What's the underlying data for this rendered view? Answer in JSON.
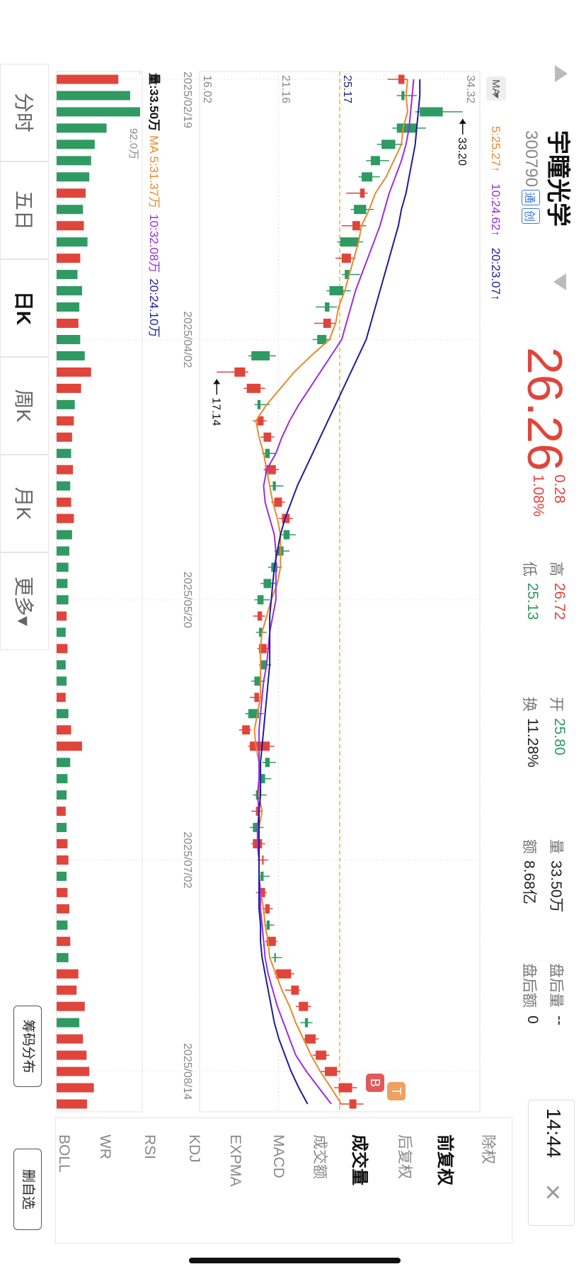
{
  "header": {
    "name": "宇瞳光学",
    "code": "300790",
    "badges": [
      "通",
      "创"
    ],
    "price": "26.26",
    "change": "0.28",
    "change_pct": "1.08%",
    "up_color": "#e0453b",
    "stats": [
      {
        "label": "高",
        "value": "26.72",
        "color": "#e0453b"
      },
      {
        "label": "低",
        "value": "25.13",
        "color": "#2f9a62"
      },
      {
        "label": "开",
        "value": "25.80",
        "color": "#2f9a62"
      },
      {
        "label": "换",
        "value": "11.28%",
        "color": "#222222"
      },
      {
        "label": "量",
        "value": "33.50万",
        "color": "#222222"
      },
      {
        "label": "额",
        "value": "8.68亿",
        "color": "#222222"
      },
      {
        "label": "盘后量",
        "value": "--",
        "color": "#222222"
      },
      {
        "label": "盘后额",
        "value": "0",
        "color": "#222222"
      }
    ],
    "time": "14:44"
  },
  "chart_data": {
    "type": "candlestick",
    "ma_label": "MA",
    "up_color": "#e0453b",
    "down_color": "#2f9a62",
    "categories": [
      "2025/02/19",
      null,
      null,
      null,
      null,
      null,
      null,
      null,
      null,
      null,
      null,
      null,
      null,
      null,
      null,
      null,
      "2025/04/02",
      null,
      null,
      null,
      null,
      null,
      null,
      null,
      null,
      null,
      null,
      null,
      null,
      null,
      null,
      null,
      "2025/05/20",
      null,
      null,
      null,
      null,
      null,
      null,
      null,
      null,
      null,
      null,
      null,
      null,
      null,
      null,
      null,
      "2025/07/02",
      null,
      null,
      null,
      null,
      null,
      null,
      null,
      null,
      null,
      null,
      null,
      null,
      "2025/08/14",
      null,
      null
    ],
    "candles": [
      [
        29.0,
        29.6,
        28.3,
        29.4
      ],
      [
        29.4,
        30.2,
        28.9,
        29.2
      ],
      [
        31.9,
        33.2,
        30.1,
        30.4
      ],
      [
        30.2,
        30.8,
        28.6,
        28.9
      ],
      [
        28.8,
        29.3,
        27.6,
        27.9
      ],
      [
        27.8,
        28.4,
        26.9,
        27.2
      ],
      [
        27.3,
        27.8,
        26.4,
        26.6
      ],
      [
        26.5,
        27.0,
        25.6,
        26.8
      ],
      [
        26.9,
        27.4,
        25.9,
        26.1
      ],
      [
        26.0,
        26.9,
        25.3,
        26.5
      ],
      [
        26.4,
        26.7,
        25.0,
        25.2
      ],
      [
        25.3,
        26.2,
        24.9,
        25.9
      ],
      [
        25.8,
        26.5,
        25.3,
        25.5
      ],
      [
        25.4,
        25.9,
        24.3,
        24.5
      ],
      [
        24.5,
        25.0,
        23.6,
        24.2
      ],
      [
        24.1,
        24.9,
        23.5,
        24.6
      ],
      [
        24.3,
        24.6,
        23.4,
        23.7
      ],
      [
        20.6,
        21.0,
        19.2,
        19.4
      ],
      [
        18.3,
        19.2,
        17.14,
        19.0
      ],
      [
        19.1,
        20.3,
        18.9,
        20.0
      ],
      [
        20.0,
        20.6,
        19.6,
        19.8
      ],
      [
        19.8,
        20.4,
        19.5,
        20.2
      ],
      [
        20.2,
        20.9,
        20.0,
        20.7
      ],
      [
        20.6,
        21.0,
        20.1,
        20.3
      ],
      [
        20.3,
        21.2,
        20.2,
        21.0
      ],
      [
        21.0,
        21.5,
        20.6,
        20.8
      ],
      [
        20.9,
        21.6,
        20.7,
        21.4
      ],
      [
        21.4,
        22.1,
        21.2,
        21.9
      ],
      [
        21.9,
        22.3,
        21.3,
        21.5
      ],
      [
        21.5,
        21.9,
        20.9,
        21.1
      ],
      [
        21.1,
        21.4,
        20.5,
        20.7
      ],
      [
        20.7,
        21.0,
        20.0,
        20.2
      ],
      [
        20.2,
        20.6,
        19.6,
        19.8
      ],
      [
        19.8,
        20.3,
        19.5,
        20.1
      ],
      [
        20.1,
        20.4,
        19.7,
        19.9
      ],
      [
        19.9,
        20.6,
        19.8,
        20.4
      ],
      [
        20.4,
        20.7,
        19.9,
        20.0
      ],
      [
        20.0,
        20.3,
        19.4,
        19.6
      ],
      [
        19.6,
        20.0,
        19.3,
        19.9
      ],
      [
        19.9,
        20.2,
        19.0,
        19.2
      ],
      [
        18.8,
        19.4,
        18.6,
        19.3
      ],
      [
        19.3,
        20.9,
        19.2,
        20.6
      ],
      [
        20.6,
        21.0,
        20.1,
        20.3
      ],
      [
        20.3,
        20.7,
        19.9,
        20.0
      ],
      [
        20.0,
        20.4,
        19.5,
        19.7
      ],
      [
        19.7,
        20.1,
        19.4,
        19.9
      ],
      [
        19.9,
        20.2,
        19.3,
        19.5
      ],
      [
        19.5,
        20.3,
        19.4,
        20.1
      ],
      [
        20.1,
        20.5,
        19.8,
        20.2
      ],
      [
        20.2,
        20.6,
        19.9,
        20.0
      ],
      [
        20.0,
        20.4,
        19.7,
        20.3
      ],
      [
        20.3,
        20.8,
        20.1,
        20.6
      ],
      [
        20.6,
        20.9,
        20.3,
        20.4
      ],
      [
        20.4,
        21.1,
        20.3,
        21.0
      ],
      [
        21.0,
        21.4,
        20.7,
        20.9
      ],
      [
        21.0,
        22.2,
        20.9,
        22.0
      ],
      [
        22.0,
        22.6,
        21.6,
        22.5
      ],
      [
        22.5,
        23.3,
        22.3,
        23.1
      ],
      [
        23.1,
        23.4,
        22.6,
        22.9
      ],
      [
        22.9,
        23.8,
        22.8,
        23.6
      ],
      [
        23.6,
        24.5,
        23.4,
        24.3
      ],
      [
        24.2,
        25.2,
        23.9,
        25.0
      ],
      [
        25.1,
        26.3,
        24.8,
        25.98
      ],
      [
        25.8,
        26.72,
        25.13,
        26.26
      ]
    ],
    "ma": [
      {
        "name": "5:25.27↑",
        "color": "#e8892e",
        "values": [
          29.6,
          29.5,
          29.6,
          29.3,
          29.2,
          28.7,
          28.2,
          27.5,
          27.1,
          26.6,
          26.4,
          26.1,
          25.8,
          25.5,
          25.1,
          24.9,
          24.5,
          23.3,
          22.2,
          21.3,
          20.4,
          19.7,
          19.9,
          20.2,
          20.4,
          20.6,
          20.8,
          21.1,
          21.3,
          21.3,
          21.3,
          21.1,
          20.7,
          20.4,
          20.1,
          20.0,
          20.0,
          20.0,
          20.0,
          19.8,
          19.6,
          19.7,
          19.9,
          19.9,
          19.9,
          20.1,
          19.9,
          19.8,
          19.9,
          19.9,
          20.0,
          20.2,
          20.3,
          20.5,
          20.6,
          21.0,
          21.4,
          21.9,
          22.3,
          22.8,
          23.3,
          23.9,
          24.6,
          25.27
        ]
      },
      {
        "name": "10:24.62↑",
        "color": "#9b2de0",
        "values": [
          30.0,
          29.9,
          29.8,
          29.7,
          29.5,
          29.2,
          28.8,
          28.4,
          28.1,
          27.8,
          27.4,
          27.0,
          26.6,
          26.2,
          25.9,
          25.6,
          25.3,
          24.6,
          23.9,
          23.2,
          22.5,
          21.9,
          21.4,
          21.0,
          20.4,
          20.2,
          20.3,
          20.6,
          20.9,
          21.0,
          21.0,
          21.0,
          21.0,
          20.8,
          20.6,
          20.5,
          20.4,
          20.2,
          20.1,
          20.0,
          19.9,
          19.9,
          19.9,
          19.9,
          19.8,
          19.9,
          19.8,
          19.8,
          19.9,
          19.9,
          20.0,
          20.0,
          20.1,
          20.2,
          20.3,
          20.5,
          20.8,
          21.1,
          21.5,
          21.9,
          22.3,
          23.0,
          23.8,
          24.62
        ]
      },
      {
        "name": "20:23.07↑",
        "color": "#1c1c9c",
        "values": [
          30.4,
          30.4,
          30.3,
          30.2,
          30.1,
          29.9,
          29.7,
          29.5,
          29.2,
          29.0,
          28.7,
          28.4,
          28.1,
          27.8,
          27.5,
          27.2,
          26.9,
          26.4,
          25.9,
          25.4,
          24.9,
          24.4,
          23.9,
          23.4,
          22.9,
          22.4,
          22.0,
          21.6,
          21.3,
          21.1,
          20.9,
          20.8,
          20.7,
          20.6,
          20.6,
          20.6,
          20.6,
          20.5,
          20.4,
          20.3,
          20.2,
          20.1,
          20.0,
          20.0,
          20.0,
          19.9,
          19.9,
          19.9,
          19.9,
          19.9,
          19.9,
          19.9,
          20.0,
          20.0,
          20.1,
          20.3,
          20.5,
          20.7,
          20.9,
          21.2,
          21.6,
          22.0,
          22.5,
          23.07
        ]
      }
    ],
    "ylim": [
      16.02,
      34.32
    ],
    "yticks": [
      16.02,
      21.16,
      34.32
    ],
    "ref_line": {
      "value": 25.17,
      "color": "#f0b429"
    },
    "max_label": {
      "value": 33.2,
      "label": "33.20"
    },
    "min_label": 17.14,
    "markers": [
      {
        "text": "T",
        "color": "#f0a060"
      },
      {
        "text": "B",
        "color": "#e05a5a"
      }
    ],
    "volume": {
      "label": "量:33.50万",
      "ma_legend": [
        {
          "name": "MA 5:31.37万",
          "color": "#e8892e"
        },
        {
          "name": "10:32.08万",
          "color": "#9b2de0"
        },
        {
          "name": "20:24.10万",
          "color": "#1c1c9c"
        }
      ],
      "values": [
        68,
        81,
        92,
        55,
        42,
        38,
        36,
        32,
        29,
        30,
        34,
        26,
        23,
        28,
        25,
        24,
        26,
        31,
        38,
        27,
        20,
        19,
        17,
        16,
        18,
        15,
        16,
        19,
        17,
        14,
        13,
        12,
        13,
        11,
        10,
        12,
        10,
        11,
        10,
        13,
        16,
        28,
        15,
        12,
        11,
        10,
        11,
        12,
        13,
        11,
        12,
        14,
        12,
        15,
        13,
        24,
        22,
        31,
        25,
        29,
        33,
        36,
        41,
        33.5
      ],
      "ylim": [
        0,
        92
      ],
      "yticks": [
        {
          "value": 92,
          "label": "92.0万"
        }
      ]
    }
  },
  "tabs": {
    "items": [
      "分时",
      "五日",
      "日K",
      "周K",
      "月K",
      "更多▾"
    ],
    "active": 2
  },
  "menu": {
    "items": [
      "除权",
      "前复权",
      "后复权",
      "成交量",
      "成交额",
      "MACD",
      "EXPMA",
      "KDJ",
      "RSI",
      "WR",
      "BOLL"
    ],
    "active": [
      1,
      3
    ]
  },
  "buttons": [
    "筹码分布",
    "删自选"
  ]
}
